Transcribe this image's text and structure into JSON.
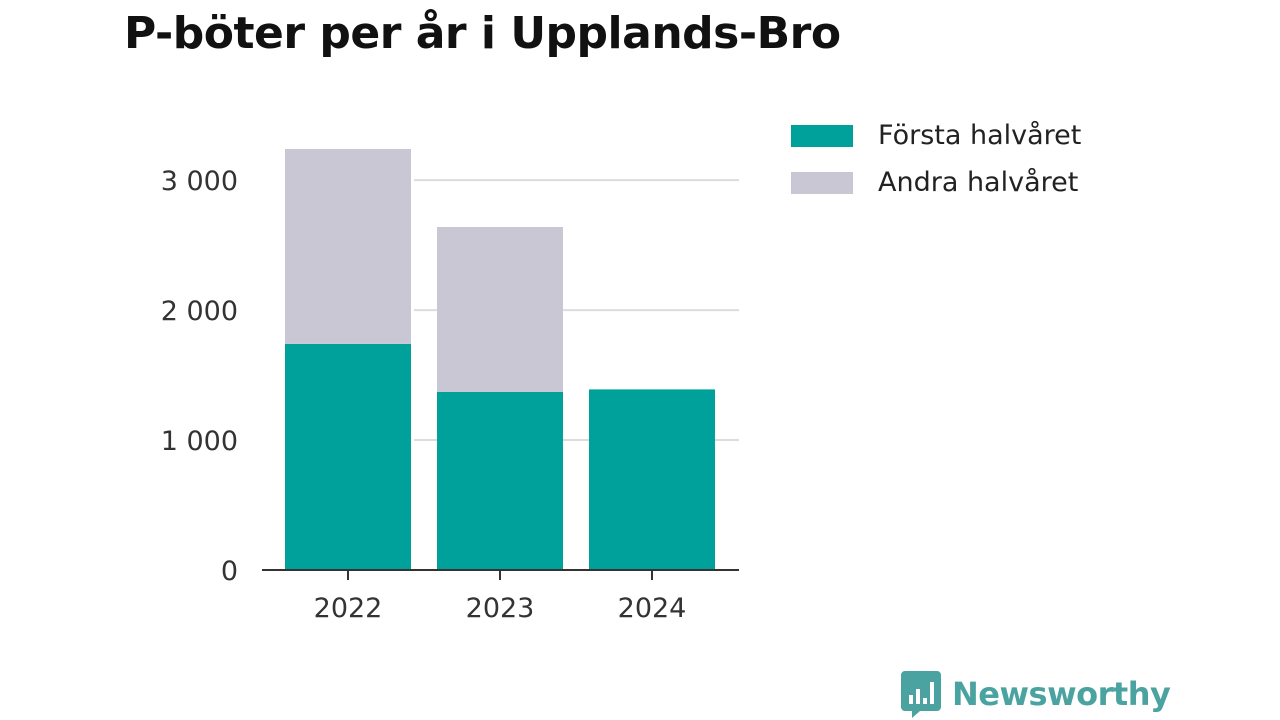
{
  "chart_data": {
    "type": "bar",
    "stacked": true,
    "title": "P-böter per år i Upplands-Bro",
    "categories": [
      "2022",
      "2023",
      "2024"
    ],
    "series": [
      {
        "name": "Första halvåret",
        "values": [
          1740,
          1370,
          1390
        ],
        "color": "#00a19a"
      },
      {
        "name": "Andra halvåret",
        "values": [
          1500,
          1270,
          0
        ],
        "color": "#c8c7d3"
      }
    ],
    "ylim": [
      0,
      3240
    ],
    "yticks": [
      0,
      1000,
      2000,
      3000
    ],
    "ytick_labels": [
      "0",
      "1 000",
      "2 000",
      "3 000"
    ],
    "grid": true,
    "legend_position": "top-right"
  },
  "brand": {
    "name": "Newsworthy",
    "icon": "bar-chart-speech-bubble-icon",
    "color": "#4aa3a0"
  }
}
